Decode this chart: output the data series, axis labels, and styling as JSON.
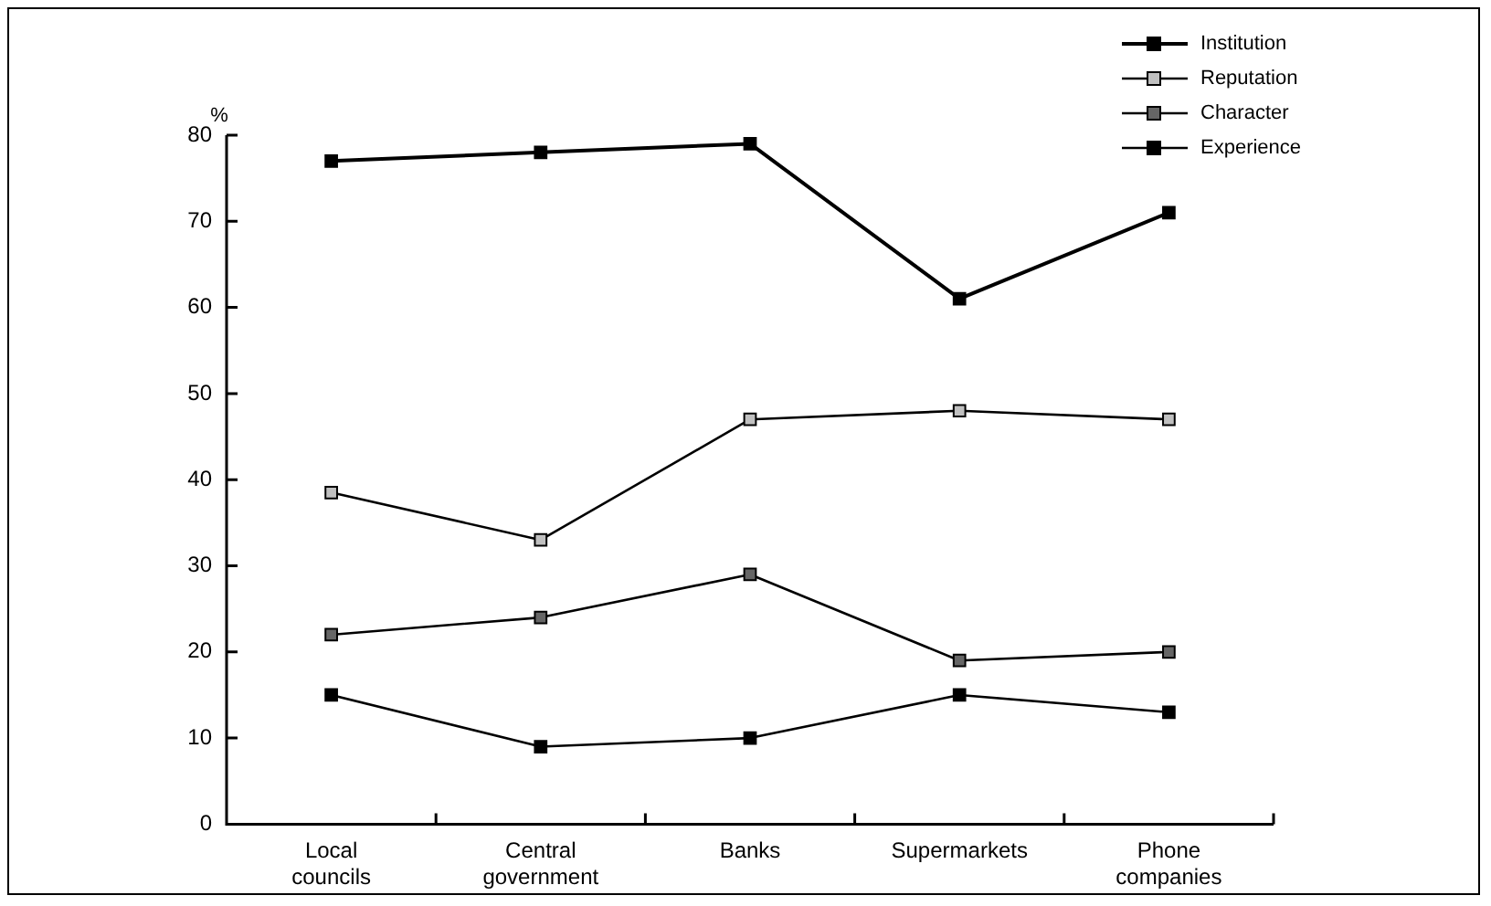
{
  "chart_data": {
    "type": "line",
    "ylabel": "%",
    "categories": [
      "Local councils",
      "Central government",
      "Banks",
      "Supermarkets",
      "Phone companies"
    ],
    "series": [
      {
        "name": "Institution",
        "color": "#000000",
        "values": [
          77,
          78,
          79,
          61,
          71
        ]
      },
      {
        "name": "Reputation",
        "color": "#c0c0c0",
        "values": [
          38.5,
          33,
          47,
          48,
          47
        ]
      },
      {
        "name": "Character",
        "color": "#666666",
        "values": [
          22,
          24,
          29,
          19,
          20
        ]
      },
      {
        "name": "Experience",
        "color": "#000000",
        "values": [
          15,
          9,
          10,
          15,
          13
        ]
      }
    ],
    "ylim": [
      0,
      80
    ],
    "yticks": [
      0,
      10,
      20,
      30,
      40,
      50,
      60,
      70,
      80
    ],
    "grid": false,
    "legend": "top right",
    "marker": "square",
    "line_style": "solid"
  }
}
